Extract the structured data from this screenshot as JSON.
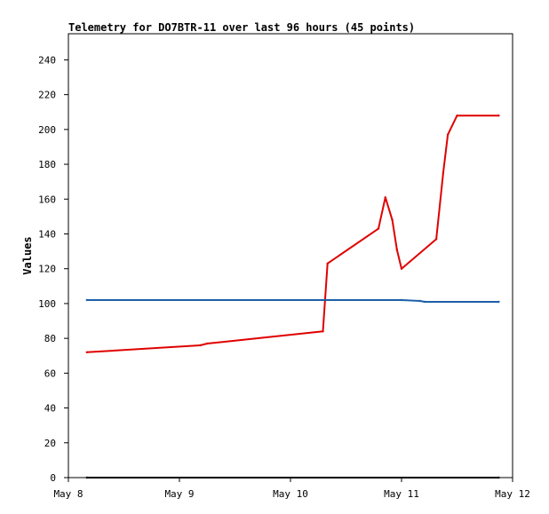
{
  "chart_data": {
    "type": "line",
    "title": "Telemetry for DO7BTR-11 over last 96 hours (45 points)",
    "xlabel": "",
    "ylabel": "Values",
    "xlim": [
      "May 8 00:00",
      "May 12 00:00"
    ],
    "ylim": [
      0,
      255
    ],
    "x_ticks": [
      "May 8",
      "May 9",
      "May 10",
      "May 11",
      "May 12"
    ],
    "y_ticks": [
      0,
      20,
      40,
      60,
      80,
      100,
      120,
      140,
      160,
      180,
      200,
      220,
      240
    ],
    "grid": false,
    "legend": "none",
    "series": [
      {
        "color": "#e00000",
        "x": [
          "May 8 04:00",
          "May 9 04:30",
          "May 9 06:00",
          "May 10 07:00",
          "May 10 08:00",
          "May 10 19:00",
          "May 10 20:30",
          "May 10 22:00",
          "May 10 23:00",
          "May 11 00:00",
          "May 11 07:30",
          "May 11 09:00",
          "May 11 10:00",
          "May 11 12:00",
          "May 11 21:00"
        ],
        "values": [
          72,
          76,
          77,
          84,
          123,
          143,
          161,
          148,
          131,
          120,
          137,
          175,
          197,
          208,
          208
        ]
      },
      {
        "color": "#1c5fa8",
        "x": [
          "May 8 04:00",
          "May 11 00:00",
          "May 11 04:00",
          "May 11 05:00",
          "May 11 21:00"
        ],
        "values": [
          102,
          102,
          101.5,
          101,
          101
        ]
      },
      {
        "color": "#000000",
        "x": [
          "May 8 04:00",
          "May 11 21:00"
        ],
        "values": [
          0,
          0
        ]
      }
    ]
  }
}
